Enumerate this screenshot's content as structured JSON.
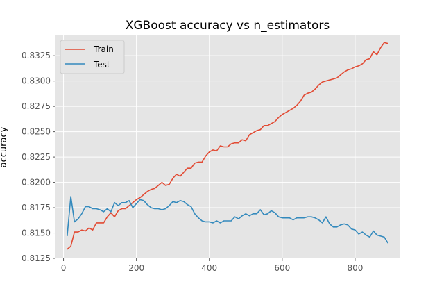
{
  "chart_data": {
    "type": "line",
    "title": "XGBoost accuracy vs n_estimators",
    "xlabel": "",
    "ylabel": "accuracy",
    "xlim": [
      -22,
      922
    ],
    "ylim": [
      0.8125,
      0.8345
    ],
    "xticks": [
      0,
      200,
      400,
      600,
      800
    ],
    "yticks": [
      0.8125,
      0.815,
      0.8175,
      0.82,
      0.8225,
      0.825,
      0.8275,
      0.83,
      0.8325
    ],
    "ytick_labels": [
      "0.8125",
      "0.8150",
      "0.8175",
      "0.8200",
      "0.8225",
      "0.8250",
      "0.8275",
      "0.8300",
      "0.8325"
    ],
    "grid": true,
    "legend_position": "upper-left",
    "x": [
      10,
      20,
      30,
      40,
      50,
      60,
      70,
      80,
      90,
      100,
      110,
      120,
      130,
      140,
      150,
      160,
      170,
      180,
      190,
      200,
      210,
      220,
      230,
      240,
      250,
      260,
      270,
      280,
      290,
      300,
      310,
      320,
      330,
      340,
      350,
      360,
      370,
      380,
      390,
      400,
      410,
      420,
      430,
      440,
      450,
      460,
      470,
      480,
      490,
      500,
      510,
      520,
      530,
      540,
      550,
      560,
      570,
      580,
      590,
      600,
      610,
      620,
      630,
      640,
      650,
      660,
      670,
      680,
      690,
      700,
      710,
      720,
      730,
      740,
      750,
      760,
      770,
      780,
      790,
      800,
      810,
      820,
      830,
      840,
      850,
      860,
      870,
      880,
      890
    ],
    "series": [
      {
        "name": "Train",
        "color": "#e24a33",
        "values": [
          0.8134,
          0.8137,
          0.8151,
          0.8151,
          0.8153,
          0.8152,
          0.8155,
          0.8153,
          0.816,
          0.816,
          0.816,
          0.8166,
          0.817,
          0.8166,
          0.8172,
          0.8174,
          0.8174,
          0.8177,
          0.818,
          0.8183,
          0.8185,
          0.8188,
          0.8191,
          0.8193,
          0.8194,
          0.8197,
          0.82,
          0.8197,
          0.8198,
          0.8204,
          0.8208,
          0.8206,
          0.821,
          0.8214,
          0.8214,
          0.8219,
          0.822,
          0.822,
          0.8226,
          0.823,
          0.8232,
          0.8231,
          0.8236,
          0.8235,
          0.8235,
          0.8238,
          0.8239,
          0.8239,
          0.8242,
          0.8241,
          0.8247,
          0.8249,
          0.8251,
          0.8252,
          0.8256,
          0.8256,
          0.8258,
          0.826,
          0.8264,
          0.8267,
          0.8269,
          0.8271,
          0.8273,
          0.8276,
          0.828,
          0.8286,
          0.8288,
          0.8289,
          0.8292,
          0.8296,
          0.8299,
          0.83,
          0.8301,
          0.8302,
          0.8303,
          0.8306,
          0.8309,
          0.8311,
          0.8312,
          0.8314,
          0.8315,
          0.8317,
          0.8321,
          0.8322,
          0.8329,
          0.8326,
          0.8333,
          0.8338,
          0.8337
        ]
      },
      {
        "name": "Test",
        "color": "#348abd",
        "values": [
          0.8147,
          0.8186,
          0.8161,
          0.8164,
          0.8169,
          0.8176,
          0.8176,
          0.8174,
          0.8174,
          0.8173,
          0.8171,
          0.8174,
          0.8171,
          0.818,
          0.8177,
          0.818,
          0.818,
          0.8182,
          0.8175,
          0.8179,
          0.8183,
          0.8182,
          0.8178,
          0.8175,
          0.8174,
          0.8174,
          0.8173,
          0.8174,
          0.8177,
          0.8181,
          0.818,
          0.8182,
          0.8181,
          0.8178,
          0.8176,
          0.8169,
          0.8165,
          0.8162,
          0.8161,
          0.8161,
          0.816,
          0.8162,
          0.816,
          0.8162,
          0.8162,
          0.8162,
          0.8166,
          0.8164,
          0.8167,
          0.8169,
          0.8167,
          0.8169,
          0.8169,
          0.8173,
          0.8168,
          0.8169,
          0.8172,
          0.817,
          0.8166,
          0.8165,
          0.8165,
          0.8165,
          0.8163,
          0.8165,
          0.8165,
          0.8165,
          0.8166,
          0.8166,
          0.8165,
          0.8163,
          0.816,
          0.8166,
          0.8159,
          0.8156,
          0.8156,
          0.8158,
          0.8159,
          0.8158,
          0.8154,
          0.8153,
          0.8149,
          0.8151,
          0.8148,
          0.8146,
          0.8152,
          0.8148,
          0.8147,
          0.8146,
          0.814
        ]
      }
    ]
  }
}
